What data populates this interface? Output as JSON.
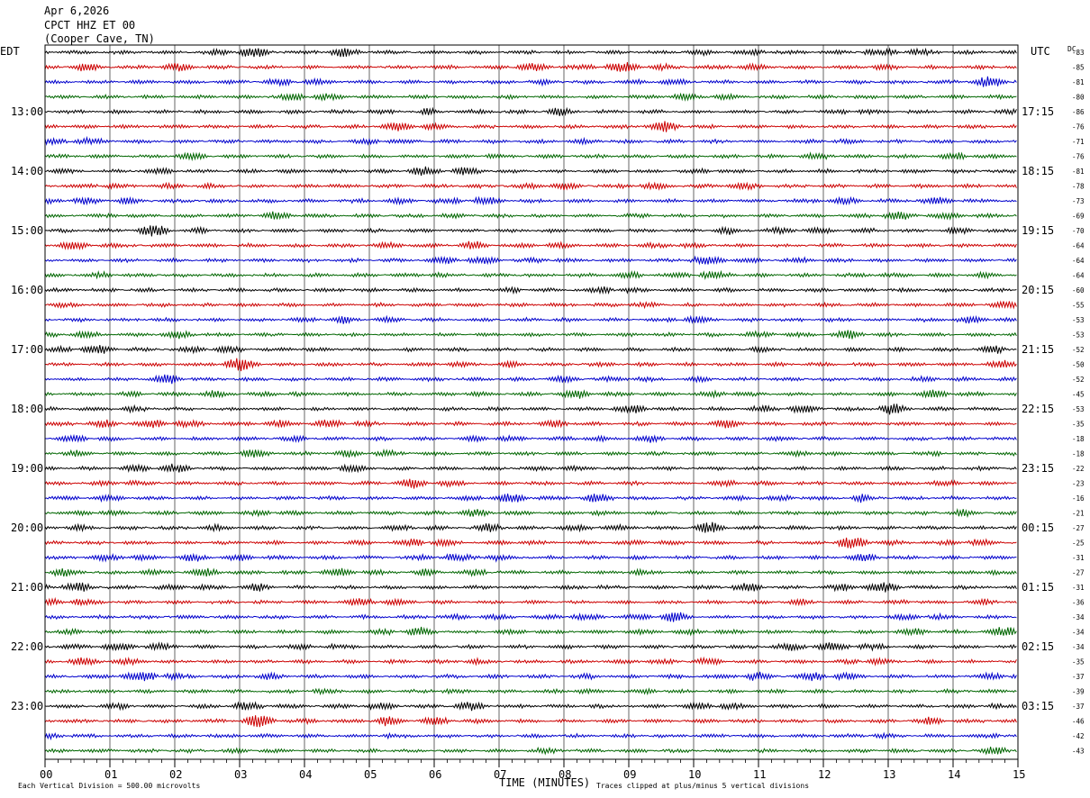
{
  "header": {
    "date": "Apr 6,2026",
    "station": "CPCT HHZ ET 00",
    "location": "(Cooper Cave, TN)"
  },
  "left_tz": "EDT",
  "right_tz": "UTC",
  "dc_label": "DC",
  "footer": {
    "scale": "Each Vertical Division =  500.00 microvolts",
    "clip": "Traces clipped at plus/minus 5 vertical divisions",
    "xaxis_title": "TIME (MINUTES)"
  },
  "chart_data": {
    "type": "line",
    "title": "Apr 6,2026 CPCT HHZ ET 00 (Cooper Cave, TN)",
    "xlabel": "TIME (MINUTES)",
    "xlim": [
      0,
      15
    ],
    "x_ticks": [
      "00",
      "01",
      "02",
      "03",
      "04",
      "05",
      "06",
      "07",
      "08",
      "09",
      "10",
      "11",
      "12",
      "13",
      "14",
      "15"
    ],
    "trace_colors": [
      "#000000",
      "#cc0000",
      "#0000cc",
      "#006600"
    ],
    "left_hour_labels": [
      "13:00",
      "14:00",
      "15:00",
      "16:00",
      "17:00",
      "18:00",
      "19:00",
      "20:00",
      "21:00",
      "22:00",
      "23:00"
    ],
    "right_hour_labels": [
      "17:15",
      "18:15",
      "19:15",
      "20:15",
      "21:15",
      "22:15",
      "23:15",
      "00:15",
      "01:15",
      "02:15",
      "03:15"
    ],
    "dc_offsets": [
      -83,
      -85,
      -81,
      -80,
      -86,
      -76,
      -71,
      -76,
      -81,
      -78,
      -73,
      -69,
      -70,
      -64,
      -64,
      -64,
      -60,
      -55,
      -53,
      -53,
      -52,
      -50,
      -52,
      -45,
      -53,
      -35,
      -18,
      -18,
      -22,
      -23,
      -16,
      -21,
      -27,
      -25,
      -31,
      -27,
      -31,
      -36,
      -34,
      -34,
      -34,
      -35,
      -37,
      -39,
      -37,
      -46,
      -42,
      -43
    ],
    "grid": true
  }
}
